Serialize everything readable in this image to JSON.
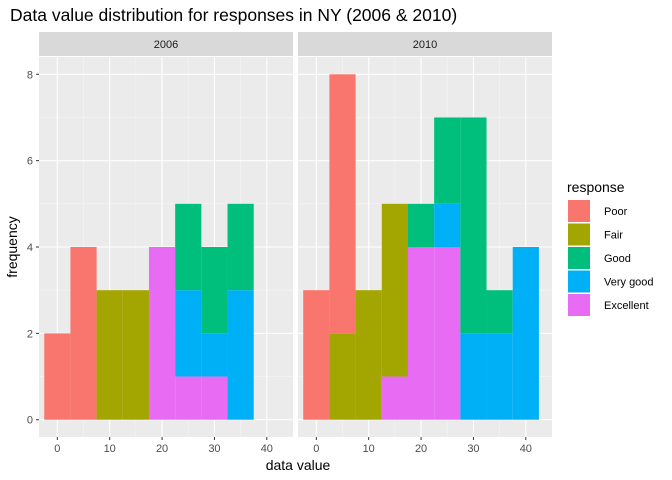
{
  "chart_data": {
    "type": "bar",
    "title": "Data value distribution for responses in NY (2006 & 2010)",
    "xlabel": "data value",
    "ylabel": "frequency",
    "xlim": [
      -3.5,
      45
    ],
    "ylim": [
      -0.4,
      8.4
    ],
    "x_ticks": [
      0,
      10,
      20,
      30,
      40
    ],
    "y_ticks": [
      0,
      2,
      4,
      6,
      8
    ],
    "bin_width": 5,
    "grid": true,
    "legend": {
      "title": "response",
      "position": "right"
    },
    "series": [
      {
        "name": "Poor",
        "color": "#F8766D"
      },
      {
        "name": "Fair",
        "color": "#A3A500"
      },
      {
        "name": "Good",
        "color": "#00BF7D"
      },
      {
        "name": "Very good",
        "color": "#00B0F6"
      },
      {
        "name": "Excellent",
        "color": "#E76BF3"
      }
    ],
    "panels": [
      {
        "label": "2006",
        "bins": [
          {
            "x": 0,
            "counts": {
              "Poor": 2,
              "Fair": 0,
              "Good": 0,
              "Very good": 0,
              "Excellent": 0
            }
          },
          {
            "x": 5,
            "counts": {
              "Poor": 4,
              "Fair": 0,
              "Good": 0,
              "Very good": 0,
              "Excellent": 0
            }
          },
          {
            "x": 10,
            "counts": {
              "Poor": 0,
              "Fair": 3,
              "Good": 0,
              "Very good": 0,
              "Excellent": 0
            }
          },
          {
            "x": 15,
            "counts": {
              "Poor": 0,
              "Fair": 3,
              "Good": 0,
              "Very good": 0,
              "Excellent": 0
            }
          },
          {
            "x": 20,
            "counts": {
              "Poor": 0,
              "Fair": 0,
              "Good": 0,
              "Very good": 0,
              "Excellent": 4
            }
          },
          {
            "x": 25,
            "counts": {
              "Poor": 0,
              "Fair": 0,
              "Good": 2,
              "Very good": 2,
              "Excellent": 1
            }
          },
          {
            "x": 30,
            "counts": {
              "Poor": 0,
              "Fair": 0,
              "Good": 2,
              "Very good": 1,
              "Excellent": 1
            }
          },
          {
            "x": 35,
            "counts": {
              "Poor": 0,
              "Fair": 0,
              "Good": 2,
              "Very good": 3,
              "Excellent": 0
            }
          }
        ]
      },
      {
        "label": "2010",
        "bins": [
          {
            "x": 0,
            "counts": {
              "Poor": 3,
              "Fair": 0,
              "Good": 0,
              "Very good": 0,
              "Excellent": 0
            }
          },
          {
            "x": 5,
            "counts": {
              "Poor": 6,
              "Fair": 2,
              "Good": 0,
              "Very good": 0,
              "Excellent": 0
            }
          },
          {
            "x": 10,
            "counts": {
              "Poor": 0,
              "Fair": 3,
              "Good": 0,
              "Very good": 0,
              "Excellent": 0
            }
          },
          {
            "x": 15,
            "counts": {
              "Poor": 0,
              "Fair": 4,
              "Good": 0,
              "Very good": 0,
              "Excellent": 1
            }
          },
          {
            "x": 20,
            "counts": {
              "Poor": 0,
              "Fair": 0,
              "Good": 1,
              "Very good": 0,
              "Excellent": 4
            }
          },
          {
            "x": 25,
            "counts": {
              "Poor": 0,
              "Fair": 0,
              "Good": 2,
              "Very good": 1,
              "Excellent": 4
            }
          },
          {
            "x": 30,
            "counts": {
              "Poor": 0,
              "Fair": 0,
              "Good": 5,
              "Very good": 2,
              "Excellent": 0
            }
          },
          {
            "x": 35,
            "counts": {
              "Poor": 0,
              "Fair": 0,
              "Good": 1,
              "Very good": 2,
              "Excellent": 0
            }
          },
          {
            "x": 40,
            "counts": {
              "Poor": 0,
              "Fair": 0,
              "Good": 0,
              "Very good": 4,
              "Excellent": 0
            }
          }
        ]
      }
    ]
  }
}
